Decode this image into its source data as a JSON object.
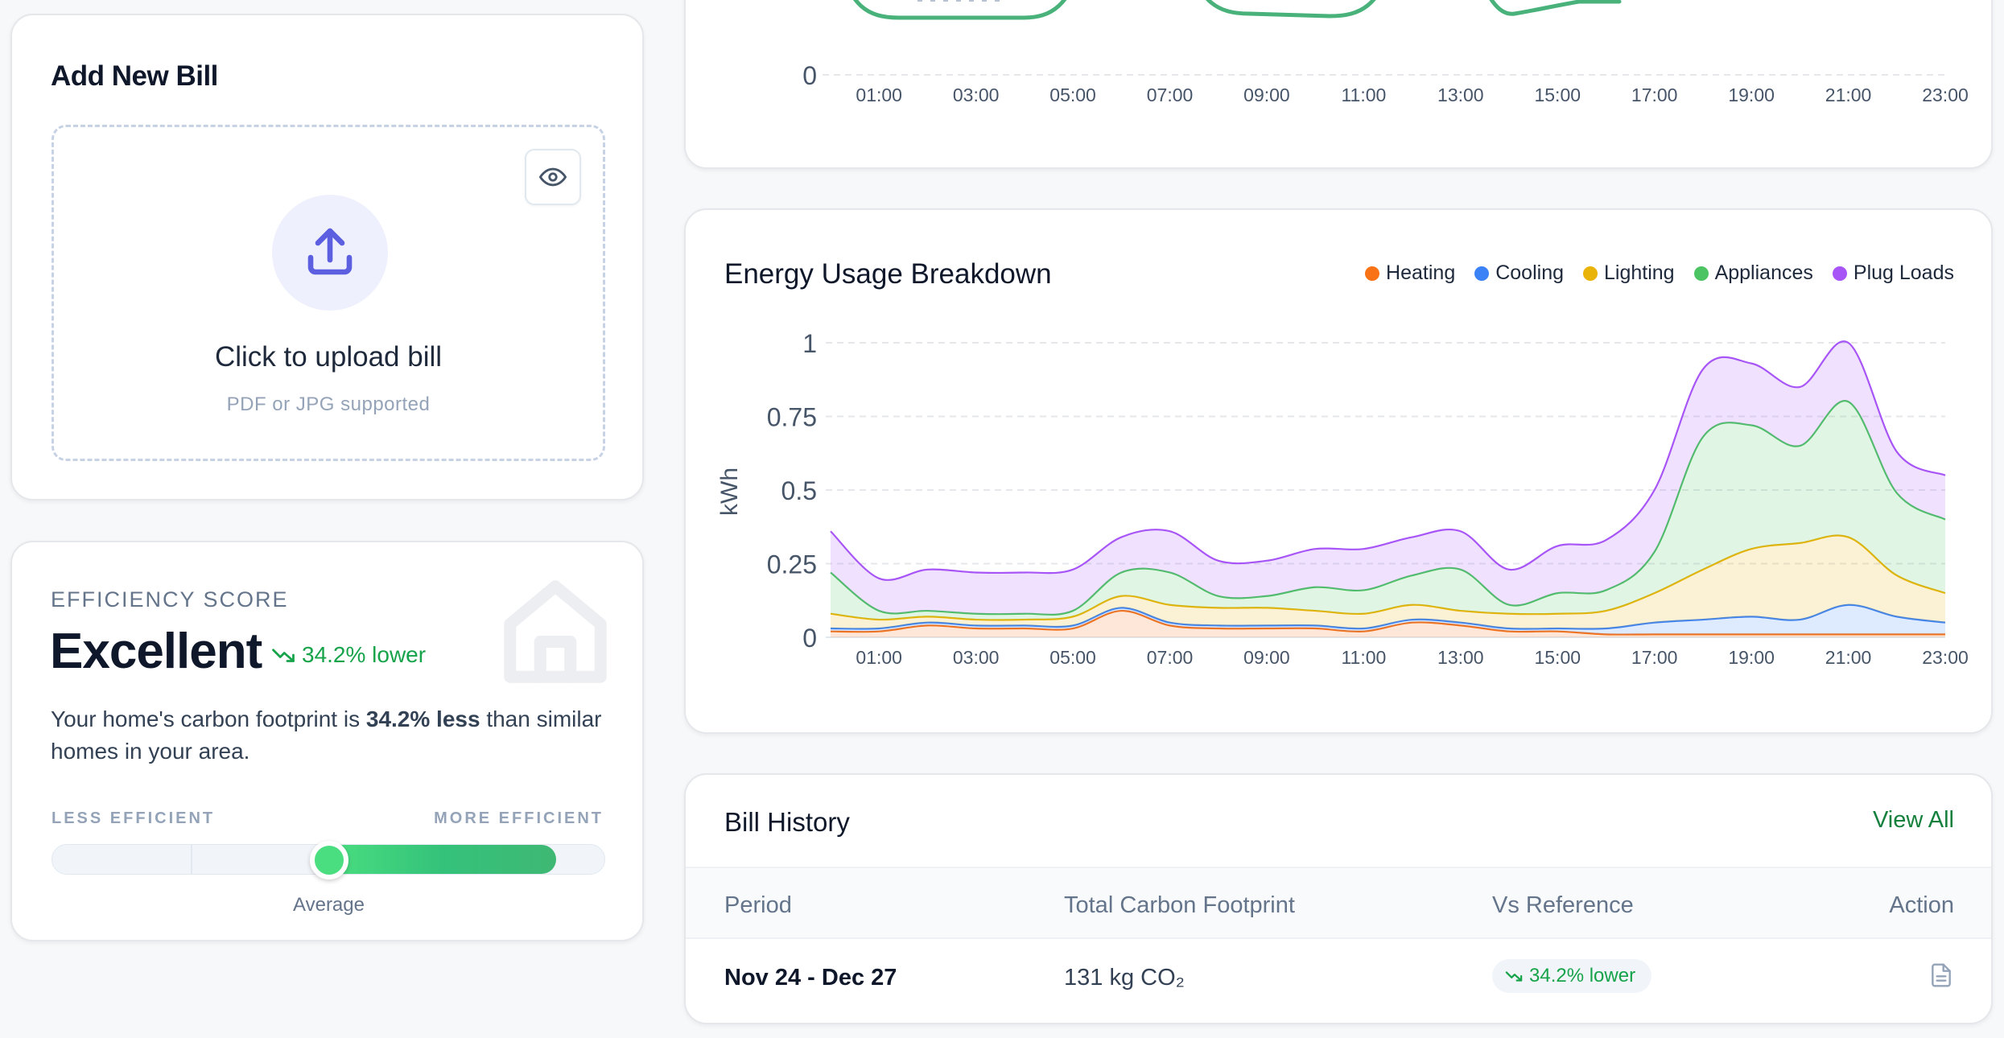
{
  "add_bill": {
    "title": "Add New Bill",
    "upload_title": "Click to upload bill",
    "upload_hint": "PDF or JPG supported"
  },
  "efficiency": {
    "label": "EFFICIENCY SCORE",
    "rating": "Excellent",
    "trend": "34.2% lower",
    "desc_prefix": "Your home's carbon footprint is ",
    "desc_bold": "34.2% less",
    "desc_suffix": " than similar homes in your area.",
    "scale_left": "LESS EFFICIENT",
    "scale_right": "MORE EFFICIENT",
    "scale_marker": "Average",
    "indicator_position": 0.5,
    "fill_end": 0.91
  },
  "top_chart": {
    "y_tick": "0",
    "x_ticks": [
      "01:00",
      "03:00",
      "05:00",
      "07:00",
      "09:00",
      "11:00",
      "13:00",
      "15:00",
      "17:00",
      "19:00",
      "21:00",
      "23:00"
    ],
    "line_color": "#48b27a"
  },
  "breakdown": {
    "title": "Energy Usage Breakdown",
    "legend": [
      {
        "name": "Heating",
        "color": "#f97316"
      },
      {
        "name": "Cooling",
        "color": "#3b82f6"
      },
      {
        "name": "Lighting",
        "color": "#eab308"
      },
      {
        "name": "Appliances",
        "color": "#4cc463"
      },
      {
        "name": "Plug Loads",
        "color": "#a855f7"
      }
    ]
  },
  "chart_data": {
    "type": "area",
    "stacked": true,
    "ylabel": "kWh",
    "ylim": [
      0,
      1
    ],
    "y_ticks": [
      "0",
      "0.25",
      "0.5",
      "0.75",
      "1"
    ],
    "x_ticks": [
      "01:00",
      "03:00",
      "05:00",
      "07:00",
      "09:00",
      "11:00",
      "13:00",
      "15:00",
      "17:00",
      "19:00",
      "21:00",
      "23:00"
    ],
    "x": [
      "00:00",
      "01:00",
      "02:00",
      "03:00",
      "04:00",
      "05:00",
      "06:00",
      "07:00",
      "08:00",
      "09:00",
      "10:00",
      "11:00",
      "12:00",
      "13:00",
      "14:00",
      "15:00",
      "16:00",
      "17:00",
      "18:00",
      "19:00",
      "20:00",
      "21:00",
      "22:00",
      "23:00"
    ],
    "grid": true,
    "legend_position": "top-right",
    "series": [
      {
        "name": "Heating",
        "color": "#f97316",
        "values": [
          0.02,
          0.02,
          0.04,
          0.03,
          0.03,
          0.03,
          0.09,
          0.04,
          0.03,
          0.03,
          0.03,
          0.02,
          0.05,
          0.04,
          0.02,
          0.02,
          0.01,
          0.01,
          0.01,
          0.01,
          0.01,
          0.01,
          0.01,
          0.01
        ]
      },
      {
        "name": "Cooling",
        "color": "#3b82f6",
        "values": [
          0.01,
          0.01,
          0.01,
          0.01,
          0.01,
          0.01,
          0.01,
          0.01,
          0.01,
          0.01,
          0.01,
          0.01,
          0.01,
          0.01,
          0.01,
          0.01,
          0.02,
          0.04,
          0.05,
          0.06,
          0.05,
          0.1,
          0.06,
          0.04
        ]
      },
      {
        "name": "Lighting",
        "color": "#eab308",
        "values": [
          0.05,
          0.03,
          0.02,
          0.02,
          0.02,
          0.03,
          0.04,
          0.06,
          0.06,
          0.06,
          0.05,
          0.05,
          0.05,
          0.04,
          0.05,
          0.05,
          0.06,
          0.1,
          0.17,
          0.23,
          0.26,
          0.23,
          0.14,
          0.1
        ]
      },
      {
        "name": "Appliances",
        "color": "#4cc463",
        "values": [
          0.14,
          0.03,
          0.02,
          0.02,
          0.02,
          0.02,
          0.08,
          0.11,
          0.04,
          0.04,
          0.08,
          0.08,
          0.1,
          0.14,
          0.03,
          0.07,
          0.07,
          0.14,
          0.45,
          0.42,
          0.33,
          0.46,
          0.28,
          0.25
        ]
      },
      {
        "name": "Plug Loads",
        "color": "#a855f7",
        "values": [
          0.14,
          0.11,
          0.14,
          0.14,
          0.14,
          0.14,
          0.12,
          0.14,
          0.12,
          0.12,
          0.13,
          0.14,
          0.13,
          0.13,
          0.12,
          0.16,
          0.17,
          0.21,
          0.23,
          0.21,
          0.2,
          0.2,
          0.14,
          0.15
        ]
      }
    ]
  },
  "history": {
    "title": "Bill History",
    "view_all": "View All",
    "columns": [
      "Period",
      "Total Carbon Footprint",
      "Vs Reference",
      "Action"
    ],
    "rows": [
      {
        "period": "Nov 24 - Dec 27",
        "total": "131 kg CO₂",
        "vs": "34.2% lower"
      }
    ]
  }
}
